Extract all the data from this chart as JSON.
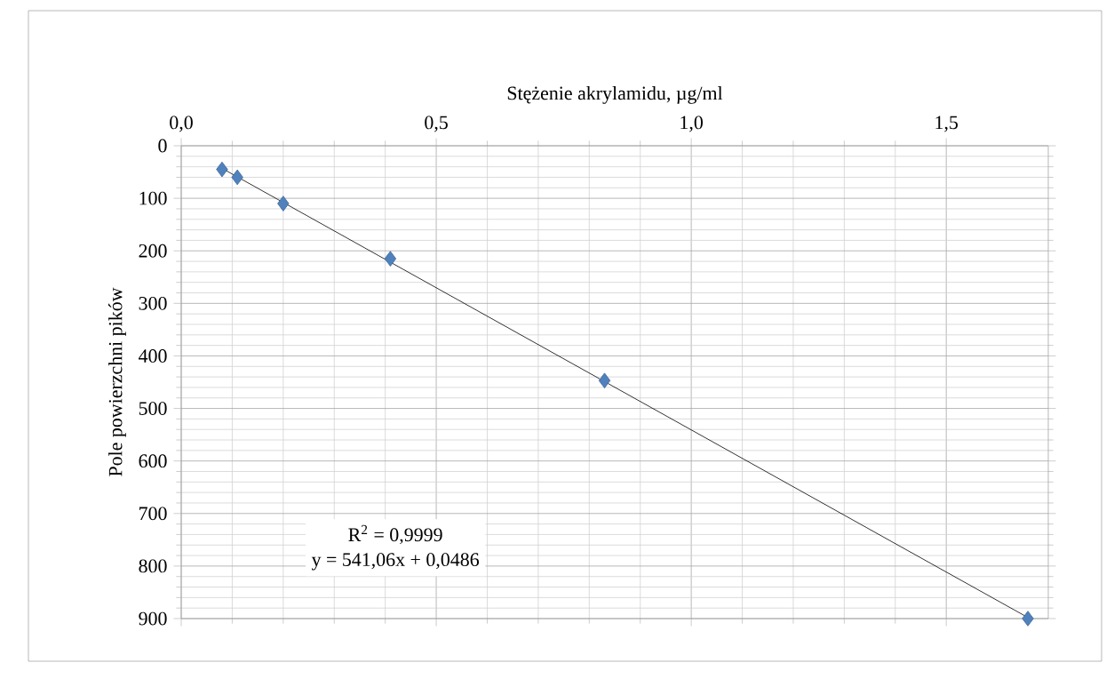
{
  "chart_data": {
    "type": "scatter",
    "xlabel": "Stężenie akrylamidu, µg/ml",
    "ylabel": "Pole powierzchni pików",
    "x": [
      0.08,
      0.11,
      0.2,
      0.41,
      0.83,
      1.66
    ],
    "series": [
      {
        "color": "#4f81bd",
        "marker": "diamond",
        "values": [
          45,
          60,
          110,
          215,
          447,
          900
        ]
      },
      {
        "type": "line",
        "color": "#000000",
        "marker": "none",
        "x": [
          0.08,
          1.66
        ],
        "values": [
          43,
          898
        ]
      }
    ],
    "xlim": [
      0,
      1.7
    ],
    "xticks": [
      {
        "value": 0,
        "label": "0,0"
      },
      {
        "value": 0.5,
        "label": "0,5"
      },
      {
        "value": 1,
        "label": "1,0"
      },
      {
        "value": 1.5,
        "label": "1,5"
      }
    ],
    "ylim": [
      900,
      0
    ],
    "yticks": [
      0,
      100,
      200,
      300,
      400,
      500,
      600,
      700,
      800,
      900
    ],
    "grid": true,
    "annotations": [
      "R$^{2}$ = 0,9999",
      "y = 541,06x + 0,0486"
    ]
  }
}
